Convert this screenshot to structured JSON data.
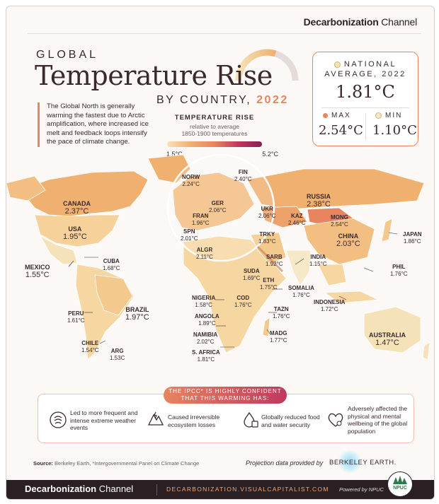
{
  "brand": {
    "bold": "Decarbonization",
    "light": " Channel"
  },
  "title": {
    "line1": "GLOBAL",
    "main": "Temperature Rise",
    "line3": "BY COUNTRY,",
    "year": "2022"
  },
  "intro": "The Global North is generally warming the fastest due to Arctic amplification, where increased ice melt and feedback loops intensify the pace of climate change.",
  "legend": {
    "title": "TEMPERATURE RISE",
    "sub1": "relative to average",
    "sub2": "1850-1900 temperatures",
    "low": "1.5°C",
    "high": "5.2°C"
  },
  "stats": {
    "national_label_1": "NATIONAL",
    "national_label_2": "AVERAGE, 2022",
    "national_value": "1.81°C",
    "max_label": "MAX",
    "max_value": "2.54°C",
    "min_label": "MIN",
    "min_value": "1.10°C",
    "colors": {
      "national": "#f6e2b8",
      "max": "#e8845e",
      "min": "#f6e9c8"
    }
  },
  "countries": [
    {
      "name": "CANADA",
      "value": "2.37°C"
    },
    {
      "name": "USA",
      "value": "1.95°C"
    },
    {
      "name": "MEXICO",
      "value": "1.55°C"
    },
    {
      "name": "CUBA",
      "value": "1.68°C"
    },
    {
      "name": "PERU",
      "value": "1.61°C"
    },
    {
      "name": "BRAZIL",
      "value": "1.97°C"
    },
    {
      "name": "CHILE",
      "value": "1.54°C"
    },
    {
      "name": "ARG",
      "value": "1.53C"
    },
    {
      "name": "NORW",
      "value": "2.24°C"
    },
    {
      "name": "FIN",
      "value": "2.40°C"
    },
    {
      "name": "GER",
      "value": "2.06°C"
    },
    {
      "name": "FRAN",
      "value": "1.96°C"
    },
    {
      "name": "SPN",
      "value": "2.01°C"
    },
    {
      "name": "UKR",
      "value": "2.06°C"
    },
    {
      "name": "TRKY",
      "value": "1.83°C"
    },
    {
      "name": "ALGR",
      "value": "2.11°C"
    },
    {
      "name": "RUSSIA",
      "value": "2.38°C"
    },
    {
      "name": "KAZ",
      "value": "2.46°C"
    },
    {
      "name": "MONG",
      "value": "2.54°C"
    },
    {
      "name": "CHINA",
      "value": "2.03°C"
    },
    {
      "name": "JAPAN",
      "value": "1.86°C"
    },
    {
      "name": "INDIA",
      "value": "1.15°C"
    },
    {
      "name": "PHIL",
      "value": "1.76°C"
    },
    {
      "name": "INDONESIA",
      "value": "1.72°C"
    },
    {
      "name": "AUSTRALIA",
      "value": "1.47°C"
    },
    {
      "name": "SARB",
      "value": "1.92°C"
    },
    {
      "name": "SUDA",
      "value": "1.69°C"
    },
    {
      "name": "ETH",
      "value": "1.75°C"
    },
    {
      "name": "SOMALIA",
      "value": "1.76°C"
    },
    {
      "name": "NIGERIA",
      "value": "1.58°C"
    },
    {
      "name": "COD",
      "value": "1.76°C"
    },
    {
      "name": "TAZN",
      "value": "1.76°C"
    },
    {
      "name": "ANGOLA",
      "value": "1.89°C"
    },
    {
      "name": "NAMIBIA",
      "value": "2.02°C"
    },
    {
      "name": "MADG",
      "value": "1.77°C"
    },
    {
      "name": "S. AFRICA",
      "value": "1.81°C"
    }
  ],
  "ipcc": {
    "pill_1": "THE IPCC* IS HIGHLY CONFIDENT",
    "pill_2": "THAT THIS WARMING HAS:",
    "impacts": [
      {
        "icon": "storm-icon",
        "text": "Led to more frequent and intense extreme weather events"
      },
      {
        "icon": "broken-ecosystem-icon",
        "text": "Caused irreversible ecosystem losses"
      },
      {
        "icon": "water-drop-icon",
        "text": "Globally reduced food and water security"
      },
      {
        "icon": "heart-icon",
        "text": "Adversely affected the physical and mental wellbeing of the global population"
      }
    ]
  },
  "source": {
    "label": "Source:",
    "text": " Berkeley Earth, *Intergovernmental Panel on Climate Change"
  },
  "projection": "Projection data provided by",
  "berkeley": "BERKELEY EARTH.",
  "footer": {
    "brand_bold": "Decarbonization",
    "brand_light": " Channel",
    "url": "DECARBONIZATION.VISUALCAPITALIST.COM",
    "powered": "Powered by NPUC",
    "npuc": "NPUC"
  }
}
